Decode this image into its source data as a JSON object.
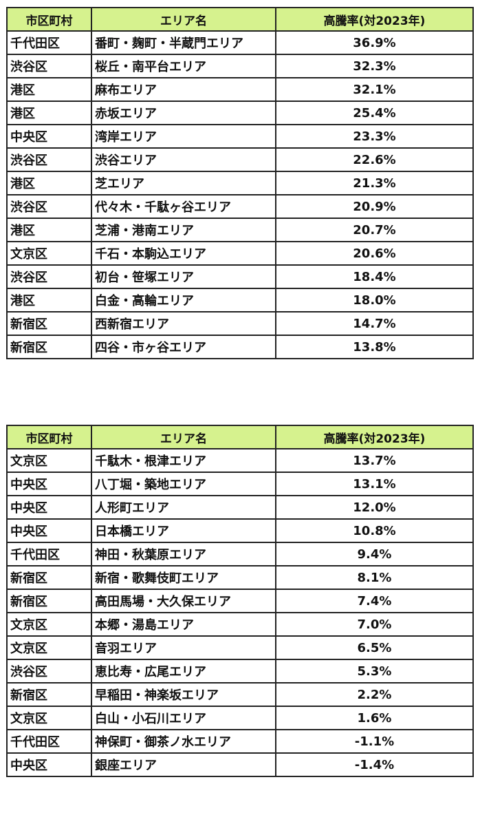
{
  "headers": {
    "municipality": "市区町村",
    "area": "エリア名",
    "rate": "高騰率(対2023年)"
  },
  "tables": [
    {
      "rows": [
        {
          "municipality": "千代田区",
          "area": "番町・麹町・半蔵門エリア",
          "rate": "36.9%"
        },
        {
          "municipality": "渋谷区",
          "area": "桜丘・南平台エリア",
          "rate": "32.3%"
        },
        {
          "municipality": "港区",
          "area": "麻布エリア",
          "rate": "32.1%"
        },
        {
          "municipality": "港区",
          "area": "赤坂エリア",
          "rate": "25.4%"
        },
        {
          "municipality": "中央区",
          "area": "湾岸エリア",
          "rate": "23.3%"
        },
        {
          "municipality": "渋谷区",
          "area": "渋谷エリア",
          "rate": "22.6%"
        },
        {
          "municipality": "港区",
          "area": "芝エリア",
          "rate": "21.3%"
        },
        {
          "municipality": "渋谷区",
          "area": "代々木・千駄ヶ谷エリア",
          "rate": "20.9%"
        },
        {
          "municipality": "港区",
          "area": "芝浦・港南エリア",
          "rate": "20.7%"
        },
        {
          "municipality": "文京区",
          "area": "千石・本駒込エリア",
          "rate": "20.6%"
        },
        {
          "municipality": "渋谷区",
          "area": "初台・笹塚エリア",
          "rate": "18.4%"
        },
        {
          "municipality": "港区",
          "area": "白金・高輪エリア",
          "rate": "18.0%"
        },
        {
          "municipality": "新宿区",
          "area": "西新宿エリア",
          "rate": "14.7%"
        },
        {
          "municipality": "新宿区",
          "area": "四谷・市ヶ谷エリア",
          "rate": "13.8%"
        }
      ]
    },
    {
      "rows": [
        {
          "municipality": "文京区",
          "area": "千駄木・根津エリア",
          "rate": "13.7%"
        },
        {
          "municipality": "中央区",
          "area": "八丁堀・築地エリア",
          "rate": "13.1%"
        },
        {
          "municipality": "中央区",
          "area": "人形町エリア",
          "rate": "12.0%"
        },
        {
          "municipality": "中央区",
          "area": "日本橋エリア",
          "rate": "10.8%"
        },
        {
          "municipality": "千代田区",
          "area": "神田・秋葉原エリア",
          "rate": "9.4%"
        },
        {
          "municipality": "新宿区",
          "area": "新宿・歌舞伎町エリア",
          "rate": "8.1%"
        },
        {
          "municipality": "新宿区",
          "area": "高田馬場・大久保エリア",
          "rate": "7.4%"
        },
        {
          "municipality": "文京区",
          "area": "本郷・湯島エリア",
          "rate": "7.0%"
        },
        {
          "municipality": "文京区",
          "area": "音羽エリア",
          "rate": "6.5%"
        },
        {
          "municipality": "渋谷区",
          "area": "恵比寿・広尾エリア",
          "rate": "5.3%"
        },
        {
          "municipality": "新宿区",
          "area": "早稲田・神楽坂エリア",
          "rate": "2.2%"
        },
        {
          "municipality": "文京区",
          "area": "白山・小石川エリア",
          "rate": "1.6%"
        },
        {
          "municipality": "千代田区",
          "area": "神保町・御茶ノ水エリア",
          "rate": "-1.1%"
        },
        {
          "municipality": "中央区",
          "area": "銀座エリア",
          "rate": "-1.4%"
        }
      ]
    }
  ],
  "colors": {
    "header_bg": "#d6f28e",
    "border": "#222222",
    "text": "#111111"
  }
}
